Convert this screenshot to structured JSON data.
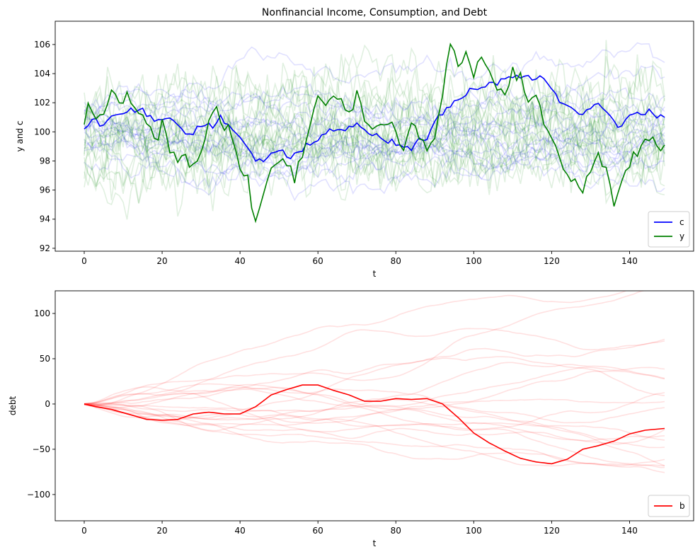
{
  "chart_data": [
    {
      "type": "line",
      "title": "Nonfinancial Income, Consumption, and Debt",
      "xlabel": "t",
      "ylabel": "y and c",
      "xlim": [
        -7.45,
        156.45
      ],
      "ylim": [
        91.8,
        107.6
      ],
      "xticks": [
        0,
        20,
        40,
        60,
        80,
        100,
        120,
        140
      ],
      "yticks": [
        92,
        94,
        96,
        98,
        100,
        102,
        104,
        106
      ],
      "legend_position": "lower-right",
      "legend": [
        {
          "label": "c",
          "color": "#0000ff"
        },
        {
          "label": "y",
          "color": "#008000"
        }
      ],
      "series": [
        {
          "name": "c",
          "color": "#0000ff",
          "anchors": [
            [
              0,
              100.2
            ],
            [
              2,
              100.9
            ],
            [
              5,
              100.5
            ],
            [
              8,
              101.3
            ],
            [
              12,
              101.6
            ],
            [
              16,
              101.2
            ],
            [
              19,
              100.8
            ],
            [
              22,
              101.0
            ],
            [
              25,
              100.1
            ],
            [
              28,
              99.9
            ],
            [
              30,
              100.6
            ],
            [
              33,
              100.4
            ],
            [
              35,
              101.1
            ],
            [
              37,
              100.4
            ],
            [
              40,
              99.6
            ],
            [
              42,
              98.9
            ],
            [
              44,
              98.0
            ],
            [
              46,
              98.2
            ],
            [
              50,
              98.7
            ],
            [
              52,
              98.3
            ],
            [
              55,
              98.5
            ],
            [
              58,
              99.1
            ],
            [
              60,
              99.4
            ],
            [
              63,
              100.0
            ],
            [
              66,
              100.1
            ],
            [
              70,
              100.6
            ],
            [
              74,
              99.8
            ],
            [
              78,
              99.3
            ],
            [
              80,
              99.1
            ],
            [
              84,
              98.9
            ],
            [
              86,
              99.4
            ],
            [
              88,
              99.5
            ],
            [
              90,
              100.7
            ],
            [
              93,
              101.6
            ],
            [
              96,
              102.4
            ],
            [
              99,
              102.8
            ],
            [
              102,
              103.1
            ],
            [
              106,
              103.4
            ],
            [
              110,
              103.9
            ],
            [
              114,
              103.7
            ],
            [
              118,
              103.7
            ],
            [
              120,
              103.0
            ],
            [
              122,
              102.1
            ],
            [
              125,
              101.5
            ],
            [
              128,
              101.2
            ],
            [
              132,
              102.0
            ],
            [
              135,
              101.1
            ],
            [
              137,
              100.2
            ],
            [
              140,
              101.2
            ],
            [
              143,
              101.3
            ],
            [
              146,
              101.1
            ],
            [
              149,
              101.0
            ]
          ]
        },
        {
          "name": "y",
          "color": "#008000",
          "anchors": [
            [
              0,
              100.5
            ],
            [
              1,
              102.1
            ],
            [
              3,
              100.8
            ],
            [
              5,
              101.0
            ],
            [
              7,
              102.7
            ],
            [
              9,
              101.8
            ],
            [
              11,
              102.3
            ],
            [
              13,
              102.0
            ],
            [
              15,
              101.2
            ],
            [
              17,
              100.2
            ],
            [
              19,
              99.5
            ],
            [
              20,
              100.9
            ],
            [
              22,
              99.0
            ],
            [
              24,
              97.8
            ],
            [
              26,
              98.3
            ],
            [
              28,
              97.4
            ],
            [
              30,
              98.8
            ],
            [
              32,
              100.6
            ],
            [
              34,
              101.7
            ],
            [
              36,
              100.2
            ],
            [
              38,
              99.5
            ],
            [
              40,
              97.3
            ],
            [
              42,
              96.8
            ],
            [
              44,
              93.7
            ],
            [
              46,
              95.6
            ],
            [
              48,
              97.3
            ],
            [
              50,
              98.0
            ],
            [
              52,
              97.8
            ],
            [
              54,
              96.8
            ],
            [
              56,
              98.1
            ],
            [
              58,
              100.5
            ],
            [
              60,
              102.6
            ],
            [
              62,
              101.6
            ],
            [
              64,
              102.5
            ],
            [
              66,
              102.0
            ],
            [
              68,
              101.2
            ],
            [
              70,
              102.6
            ],
            [
              72,
              100.9
            ],
            [
              74,
              99.9
            ],
            [
              76,
              100.6
            ],
            [
              78,
              100.7
            ],
            [
              80,
              99.8
            ],
            [
              82,
              98.5
            ],
            [
              84,
              100.5
            ],
            [
              86,
              99.7
            ],
            [
              88,
              98.8
            ],
            [
              90,
              99.7
            ],
            [
              92,
              102.4
            ],
            [
              94,
              106.2
            ],
            [
              96,
              104.4
            ],
            [
              98,
              105.5
            ],
            [
              100,
              104.0
            ],
            [
              102,
              105.5
            ],
            [
              104,
              104.0
            ],
            [
              106,
              103.1
            ],
            [
              108,
              102.5
            ],
            [
              110,
              103.9
            ],
            [
              112,
              103.5
            ],
            [
              114,
              101.8
            ],
            [
              116,
              102.7
            ],
            [
              118,
              100.5
            ],
            [
              120,
              99.5
            ],
            [
              122,
              98.4
            ],
            [
              124,
              96.8
            ],
            [
              126,
              96.6
            ],
            [
              128,
              96.2
            ],
            [
              130,
              97.5
            ],
            [
              132,
              98.2
            ],
            [
              134,
              97.8
            ],
            [
              136,
              94.8
            ],
            [
              138,
              96.5
            ],
            [
              140,
              98.0
            ],
            [
              142,
              98.6
            ],
            [
              144,
              99.2
            ],
            [
              146,
              99.5
            ],
            [
              148,
              98.5
            ],
            [
              149,
              99.1
            ]
          ]
        }
      ],
      "background_series": {
        "c_paths": 18,
        "y_paths": 18,
        "c_color": "#0000ff",
        "y_color": "#008000",
        "opacity": 0.12
      }
    },
    {
      "type": "line",
      "title": "",
      "xlabel": "t",
      "ylabel": "debt",
      "xlim": [
        -7.45,
        156.45
      ],
      "ylim": [
        -129,
        125
      ],
      "xticks": [
        0,
        20,
        40,
        60,
        80,
        100,
        120,
        140
      ],
      "yticks": [
        -100,
        -50,
        0,
        50,
        100
      ],
      "legend_position": "lower-right",
      "legend": [
        {
          "label": "b",
          "color": "#ff0000"
        }
      ],
      "series": [
        {
          "name": "b",
          "color": "#ff0000",
          "anchors": [
            [
              0,
              0
            ],
            [
              3,
              -3
            ],
            [
              7,
              -6
            ],
            [
              12,
              -12
            ],
            [
              16,
              -17
            ],
            [
              20,
              -18
            ],
            [
              24,
              -17
            ],
            [
              28,
              -11
            ],
            [
              32,
              -9
            ],
            [
              36,
              -11
            ],
            [
              40,
              -11
            ],
            [
              44,
              -3
            ],
            [
              48,
              10
            ],
            [
              52,
              16
            ],
            [
              56,
              21
            ],
            [
              60,
              21
            ],
            [
              64,
              15
            ],
            [
              68,
              10
            ],
            [
              72,
              3
            ],
            [
              76,
              3
            ],
            [
              80,
              6
            ],
            [
              84,
              5
            ],
            [
              88,
              6
            ],
            [
              92,
              0
            ],
            [
              96,
              -15
            ],
            [
              100,
              -32
            ],
            [
              104,
              -43
            ],
            [
              108,
              -52
            ],
            [
              112,
              -60
            ],
            [
              116,
              -64
            ],
            [
              120,
              -66
            ],
            [
              124,
              -61
            ],
            [
              128,
              -50
            ],
            [
              132,
              -46
            ],
            [
              136,
              -41
            ],
            [
              140,
              -33
            ],
            [
              144,
              -29
            ],
            [
              149,
              -27
            ]
          ]
        }
      ],
      "background_series": {
        "paths": 20,
        "color": "#ff0000",
        "opacity": 0.12
      }
    }
  ]
}
